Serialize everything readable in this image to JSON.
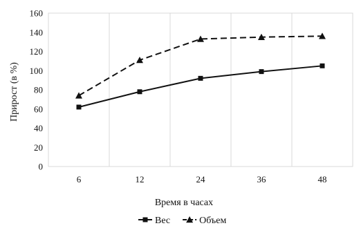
{
  "chart_data": {
    "type": "line",
    "x": [
      "6",
      "12",
      "24",
      "36",
      "48"
    ],
    "series": [
      {
        "name": "Вес",
        "values": [
          62,
          78,
          92,
          99,
          105
        ],
        "color": "#111111",
        "line_style": "solid",
        "marker": "square"
      },
      {
        "name": "Объем",
        "values": [
          74,
          111,
          133,
          135,
          136
        ],
        "color": "#111111",
        "line_style": "dashed",
        "marker": "triangle"
      }
    ],
    "xlabel": "Время в часах",
    "ylabel": "Прирост (в %)",
    "ylim": [
      0,
      160
    ],
    "yticks": [
      "0",
      "20",
      "40",
      "60",
      "80",
      "100",
      "120",
      "140",
      "160"
    ],
    "grid": "vertical",
    "legend_position": "bottom"
  }
}
